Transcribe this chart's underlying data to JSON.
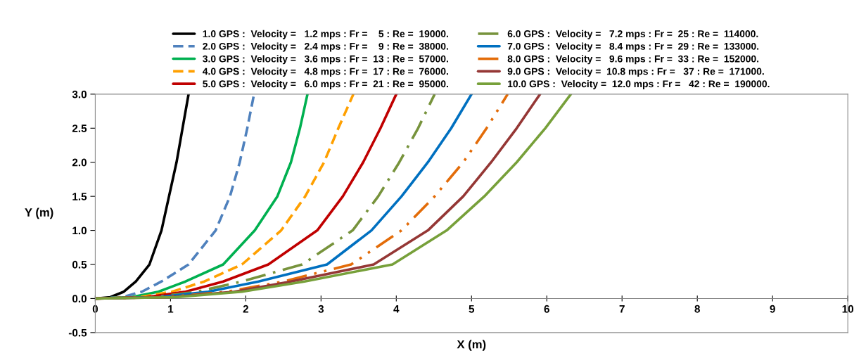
{
  "chart_data": {
    "type": "line",
    "xlabel": "X (m)",
    "ylabel": "Y (m)",
    "xlim": [
      0,
      10
    ],
    "xticks": [
      0,
      1,
      2,
      3,
      4,
      5,
      6,
      7,
      8,
      9,
      10
    ],
    "ylim": [
      -0.5,
      3.0
    ],
    "yticks": [
      {
        "value": -0.5,
        "label": "-0.5"
      },
      {
        "value": 0,
        "label": "0.0"
      },
      {
        "value": 0.5,
        "label": "0.5"
      },
      {
        "value": 1.0,
        "label": "1.0"
      },
      {
        "value": 1.5,
        "label": "1.5"
      },
      {
        "value": 2.0,
        "label": "2.0"
      },
      {
        "value": 2.5,
        "label": "2.5"
      },
      {
        "value": 3.0,
        "label": "3.0"
      }
    ],
    "grid": false,
    "legend": "top",
    "marker": "none",
    "series": [
      {
        "name": "1.0 GPS :  Velocity =   1.2 mps : Fr =    5 : Re =  19000.",
        "color": "#000000",
        "line_style": "solid",
        "x": [
          0,
          0.2,
          0.38,
          0.54,
          0.72,
          0.88,
          0.98,
          1.08,
          1.16,
          1.24
        ],
        "values": [
          0,
          0.02,
          0.1,
          0.25,
          0.5,
          1.0,
          1.5,
          2.0,
          2.5,
          3.0
        ]
      },
      {
        "name": "2.0 GPS :  Velocity =   2.4 mps : Fr =    9 : Re =  38000.",
        "color": "#4f81bd",
        "line_style": "dashed",
        "x": [
          0,
          0.36,
          0.62,
          0.88,
          1.24,
          1.6,
          1.79,
          1.92,
          2.02,
          2.11
        ],
        "values": [
          0,
          0.02,
          0.1,
          0.25,
          0.5,
          1.0,
          1.5,
          2.0,
          2.5,
          3.0
        ]
      },
      {
        "name": "3.0 GPS :  Velocity =   3.6 mps : Fr =  13 : Re =  57000.",
        "color": "#00b050",
        "line_style": "solid",
        "x": [
          0,
          0.48,
          0.84,
          1.2,
          1.7,
          2.12,
          2.42,
          2.6,
          2.72,
          2.82
        ],
        "values": [
          0,
          0.02,
          0.1,
          0.25,
          0.5,
          1.0,
          1.5,
          2.0,
          2.5,
          3.0
        ]
      },
      {
        "name": "4.0 GPS :  Velocity =   4.8 mps : Fr =  17 : Re =  76000.",
        "color": "#ffa000",
        "line_style": "dashed",
        "x": [
          0,
          0.58,
          1.02,
          1.45,
          1.95,
          2.47,
          2.79,
          3.04,
          3.23,
          3.43
        ],
        "values": [
          0,
          0.02,
          0.1,
          0.25,
          0.5,
          1.0,
          1.5,
          2.0,
          2.5,
          3.0
        ]
      },
      {
        "name": "5.0 GPS :  Velocity =   6.0 mps : Fr =  21 : Re =  95000.",
        "color": "#c00000",
        "line_style": "solid",
        "x": [
          0,
          0.68,
          1.2,
          1.7,
          2.3,
          2.95,
          3.29,
          3.56,
          3.79,
          4.0
        ],
        "values": [
          0,
          0.02,
          0.1,
          0.25,
          0.5,
          1.0,
          1.5,
          2.0,
          2.5,
          3.0
        ]
      },
      {
        "name": "6.0 GPS :  Velocity =   7.2 mps : Fr =  25 : Re =  114000.",
        "color": "#77933c",
        "line_style": "dashdot",
        "x": [
          0,
          0.77,
          1.35,
          1.95,
          2.75,
          3.42,
          3.76,
          4.04,
          4.29,
          4.51
        ],
        "values": [
          0,
          0.02,
          0.1,
          0.25,
          0.5,
          1.0,
          1.5,
          2.0,
          2.5,
          3.0
        ]
      },
      {
        "name": "7.0 GPS :  Velocity =   8.4 mps : Fr =  29 : Re =  133000.",
        "color": "#0070c0",
        "line_style": "solid",
        "x": [
          0,
          0.85,
          1.5,
          2.17,
          3.08,
          3.67,
          4.07,
          4.42,
          4.73,
          5.0
        ],
        "values": [
          0,
          0.02,
          0.1,
          0.25,
          0.5,
          1.0,
          1.5,
          2.0,
          2.5,
          3.0
        ]
      },
      {
        "name": "8.0 GPS :  Velocity =   9.6 mps : Fr =  33 : Re =  152000.",
        "color": "#e36c09",
        "line_style": "dashdotdot",
        "x": [
          0,
          0.93,
          1.75,
          2.5,
          3.4,
          4.07,
          4.51,
          4.89,
          5.2,
          5.48
        ],
        "values": [
          0,
          0.02,
          0.1,
          0.25,
          0.5,
          1.0,
          1.5,
          2.0,
          2.5,
          3.0
        ]
      },
      {
        "name": "9.0 GPS :  Velocity =  10.8 mps : Fr =   37 : Re =  171000.",
        "color": "#953735",
        "line_style": "solid",
        "x": [
          0,
          1.0,
          1.85,
          2.6,
          3.7,
          4.42,
          4.89,
          5.26,
          5.6,
          5.91
        ],
        "values": [
          0,
          0.02,
          0.1,
          0.25,
          0.5,
          1.0,
          1.5,
          2.0,
          2.5,
          3.0
        ]
      },
      {
        "name": "10.0 GPS :  Velocity =  12.0 mps : Fr =   42 : Re =  190000.",
        "color": "#77a03a",
        "line_style": "solid",
        "x": [
          0,
          1.07,
          1.95,
          2.78,
          3.95,
          4.67,
          5.17,
          5.6,
          5.98,
          6.32
        ],
        "values": [
          0,
          0.02,
          0.1,
          0.25,
          0.5,
          1.0,
          1.5,
          2.0,
          2.5,
          3.0
        ]
      }
    ]
  }
}
